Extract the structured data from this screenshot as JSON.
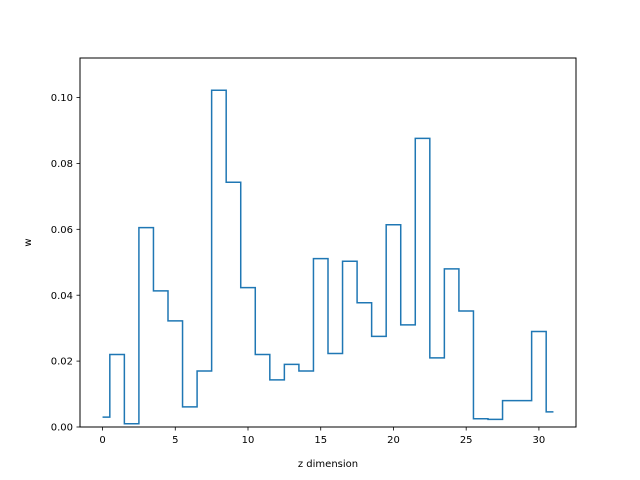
{
  "chart_data": {
    "type": "line",
    "drawstyle": "steps-mid",
    "xlabel": "z dimension",
    "ylabel": "w",
    "xlim": [
      -1.55,
      32.55
    ],
    "ylim": [
      0,
      0.112
    ],
    "xticks": [
      0,
      5,
      10,
      15,
      20,
      25,
      30
    ],
    "yticks": [
      0.0,
      0.02,
      0.04,
      0.06,
      0.08,
      0.1
    ],
    "ytick_labels": [
      "0.00",
      "0.02",
      "0.04",
      "0.06",
      "0.08",
      "0.10"
    ],
    "grid": false,
    "series": [
      {
        "color": "#1f77b4",
        "x": [
          0,
          1,
          2,
          3,
          4,
          5,
          6,
          7,
          8,
          9,
          10,
          11,
          12,
          13,
          14,
          15,
          16,
          17,
          18,
          19,
          20,
          21,
          22,
          23,
          24,
          25,
          26,
          27,
          28,
          29,
          30,
          31
        ],
        "y": [
          0.003,
          0.022,
          0.001,
          0.0605,
          0.0413,
          0.0322,
          0.0061,
          0.017,
          0.1022,
          0.0743,
          0.0423,
          0.022,
          0.0143,
          0.019,
          0.017,
          0.0511,
          0.0223,
          0.0503,
          0.0377,
          0.0275,
          0.0614,
          0.031,
          0.0876,
          0.021,
          0.048,
          0.0352,
          0.0025,
          0.0023,
          0.008,
          0.008,
          0.029,
          0.0046
        ]
      }
    ]
  }
}
